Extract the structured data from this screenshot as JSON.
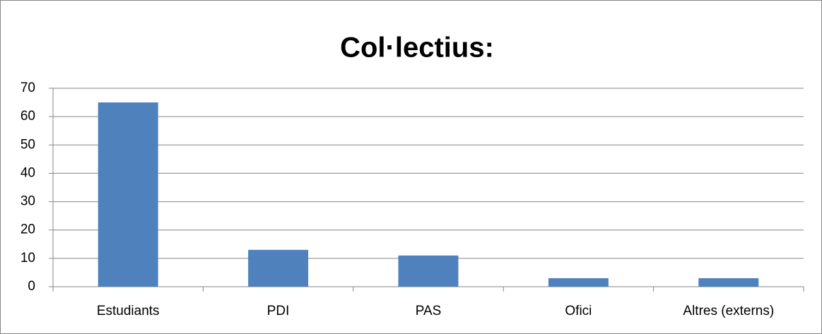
{
  "chart_data": {
    "type": "bar",
    "title": "Col·lectius:",
    "categories": [
      "Estudiants",
      "PDI",
      "PAS",
      "Ofici",
      "Altres (externs)"
    ],
    "values": [
      65,
      13,
      11,
      3,
      3
    ],
    "color": "#4f81bd",
    "ylim": [
      0,
      70
    ],
    "yticks": [
      0,
      10,
      20,
      30,
      40,
      50,
      60,
      70
    ],
    "grid": true
  }
}
